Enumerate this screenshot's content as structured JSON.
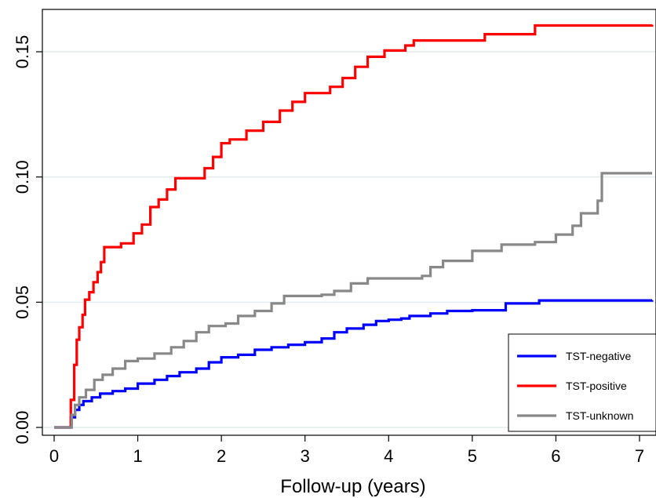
{
  "chart_data": {
    "type": "line",
    "xlabel": "Follow-up (years)",
    "ylabel": "",
    "xlim": [
      0,
      7.15
    ],
    "ylim": [
      0,
      0.165
    ],
    "x_ticks": [
      {
        "value": 0,
        "label": "0"
      },
      {
        "value": 1,
        "label": "1"
      },
      {
        "value": 2,
        "label": "2"
      },
      {
        "value": 3,
        "label": "3"
      },
      {
        "value": 4,
        "label": "4"
      },
      {
        "value": 5,
        "label": "5"
      },
      {
        "value": 6,
        "label": "6"
      },
      {
        "value": 7,
        "label": "7"
      }
    ],
    "y_ticks": [
      {
        "value": 0,
        "label": "0.00"
      },
      {
        "value": 0.05,
        "label": "0.05"
      },
      {
        "value": 0.1,
        "label": "0.10"
      },
      {
        "value": 0.15,
        "label": "0.15"
      }
    ],
    "grid": "horizontal",
    "legend_position": "bottom-right",
    "step": true,
    "series": [
      {
        "name": "TST-negative",
        "color": "#0000ff",
        "points": [
          [
            0,
            0
          ],
          [
            0.18,
            0
          ],
          [
            0.2,
            0.004
          ],
          [
            0.25,
            0.007
          ],
          [
            0.3,
            0.009
          ],
          [
            0.35,
            0.0105
          ],
          [
            0.45,
            0.012
          ],
          [
            0.55,
            0.0135
          ],
          [
            0.7,
            0.0145
          ],
          [
            0.85,
            0.0155
          ],
          [
            1.0,
            0.0175
          ],
          [
            1.2,
            0.019
          ],
          [
            1.35,
            0.0205
          ],
          [
            1.5,
            0.022
          ],
          [
            1.7,
            0.0235
          ],
          [
            1.85,
            0.026
          ],
          [
            2.0,
            0.028
          ],
          [
            2.2,
            0.029
          ],
          [
            2.4,
            0.031
          ],
          [
            2.6,
            0.032
          ],
          [
            2.8,
            0.033
          ],
          [
            3.0,
            0.034
          ],
          [
            3.2,
            0.0355
          ],
          [
            3.35,
            0.038
          ],
          [
            3.5,
            0.0395
          ],
          [
            3.7,
            0.041
          ],
          [
            3.85,
            0.0425
          ],
          [
            4.0,
            0.043
          ],
          [
            4.15,
            0.0435
          ],
          [
            4.25,
            0.0445
          ],
          [
            4.5,
            0.0455
          ],
          [
            4.7,
            0.0465
          ],
          [
            5.0,
            0.0468
          ],
          [
            5.4,
            0.0495
          ],
          [
            5.8,
            0.0507
          ],
          [
            7.15,
            0.0508
          ]
        ]
      },
      {
        "name": "TST-positive",
        "color": "#ff0000",
        "points": [
          [
            0,
            0
          ],
          [
            0.18,
            0
          ],
          [
            0.2,
            0.011
          ],
          [
            0.24,
            0.025
          ],
          [
            0.27,
            0.035
          ],
          [
            0.3,
            0.04
          ],
          [
            0.34,
            0.045
          ],
          [
            0.37,
            0.051
          ],
          [
            0.42,
            0.054
          ],
          [
            0.47,
            0.058
          ],
          [
            0.52,
            0.062
          ],
          [
            0.56,
            0.066
          ],
          [
            0.6,
            0.072
          ],
          [
            0.8,
            0.0735
          ],
          [
            0.95,
            0.0775
          ],
          [
            1.05,
            0.081
          ],
          [
            1.15,
            0.088
          ],
          [
            1.25,
            0.091
          ],
          [
            1.35,
            0.095
          ],
          [
            1.45,
            0.0995
          ],
          [
            1.8,
            0.1035
          ],
          [
            1.9,
            0.108
          ],
          [
            2.0,
            0.1135
          ],
          [
            2.1,
            0.115
          ],
          [
            2.3,
            0.1185
          ],
          [
            2.5,
            0.122
          ],
          [
            2.7,
            0.1265
          ],
          [
            2.85,
            0.13
          ],
          [
            3.0,
            0.1335
          ],
          [
            3.3,
            0.136
          ],
          [
            3.45,
            0.1395
          ],
          [
            3.6,
            0.144
          ],
          [
            3.75,
            0.148
          ],
          [
            3.95,
            0.1505
          ],
          [
            4.2,
            0.1525
          ],
          [
            4.3,
            0.1545
          ],
          [
            5.15,
            0.157
          ],
          [
            5.75,
            0.1605
          ],
          [
            7.15,
            0.1608
          ]
        ]
      },
      {
        "name": "TST-unknown",
        "color": "#888888",
        "points": [
          [
            0,
            0
          ],
          [
            0.18,
            0
          ],
          [
            0.21,
            0.005
          ],
          [
            0.25,
            0.009
          ],
          [
            0.3,
            0.012
          ],
          [
            0.38,
            0.015
          ],
          [
            0.48,
            0.019
          ],
          [
            0.58,
            0.021
          ],
          [
            0.7,
            0.0235
          ],
          [
            0.85,
            0.0265
          ],
          [
            1.0,
            0.0275
          ],
          [
            1.2,
            0.0295
          ],
          [
            1.4,
            0.032
          ],
          [
            1.55,
            0.0345
          ],
          [
            1.7,
            0.038
          ],
          [
            1.85,
            0.0405
          ],
          [
            2.05,
            0.0415
          ],
          [
            2.2,
            0.0445
          ],
          [
            2.4,
            0.0465
          ],
          [
            2.6,
            0.0495
          ],
          [
            2.75,
            0.0525
          ],
          [
            3.2,
            0.053
          ],
          [
            3.35,
            0.0545
          ],
          [
            3.55,
            0.0575
          ],
          [
            3.75,
            0.0595
          ],
          [
            4.4,
            0.0605
          ],
          [
            4.5,
            0.064
          ],
          [
            4.65,
            0.0665
          ],
          [
            5.0,
            0.0675
          ],
          [
            5.0,
            0.0705
          ],
          [
            5.35,
            0.073
          ],
          [
            5.75,
            0.074
          ],
          [
            6.0,
            0.077
          ],
          [
            6.2,
            0.0805
          ],
          [
            6.3,
            0.0855
          ],
          [
            6.5,
            0.0905
          ],
          [
            6.55,
            0.1015
          ],
          [
            7.15,
            0.1015
          ]
        ]
      }
    ]
  }
}
